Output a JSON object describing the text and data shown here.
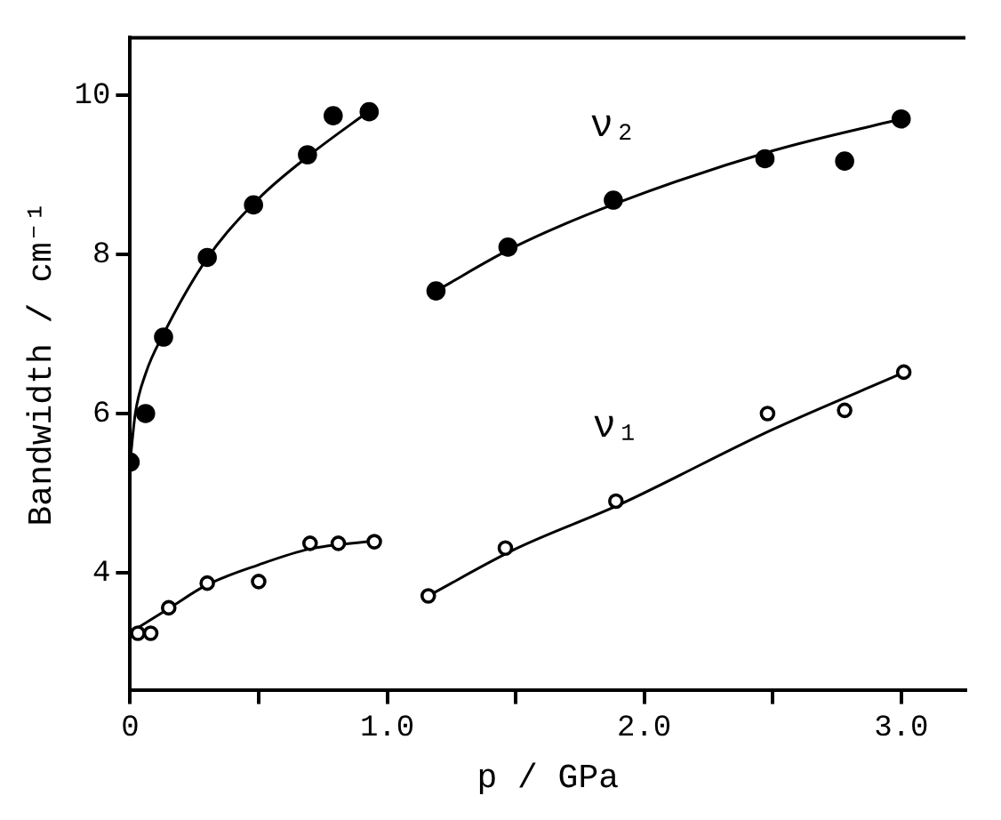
{
  "chart_data": {
    "type": "scatter",
    "xlabel": "p / GPa",
    "ylabel": "Bandwidth / cm⁻¹",
    "xlim": [
      0,
      3.25
    ],
    "ylim": [
      2.53,
      10.72
    ],
    "xticks": [
      0,
      {
        "value": 0.5,
        "label": null
      },
      {
        "value": 1,
        "label": "1.0"
      },
      {
        "value": 1.5,
        "label": null
      },
      {
        "value": 2,
        "label": "2.0"
      },
      {
        "value": 2.5,
        "label": null
      },
      {
        "value": 3,
        "label": "3.0"
      }
    ],
    "yticks": [
      4,
      6,
      8,
      10
    ],
    "grid": false,
    "legend": false,
    "series": [
      {
        "name": "ν₂",
        "marker": "circle",
        "color": "#000000",
        "x": [
          0,
          0.06,
          0.13,
          0.3,
          0.48,
          0.69,
          0.79,
          0.93,
          1.19,
          1.47,
          1.88,
          2.47,
          2.78,
          3.0
        ],
        "values": [
          5.39,
          6.0,
          6.96,
          7.96,
          8.62,
          9.25,
          9.74,
          9.79,
          7.54,
          8.09,
          8.68,
          9.2,
          9.17,
          9.7
        ]
      },
      {
        "name": "ν₁",
        "marker": "circle",
        "color": "#000000",
        "x": [
          0.03,
          0.08,
          0.15,
          0.3,
          0.5,
          0.7,
          0.81,
          0.95,
          1.16,
          1.46,
          1.89,
          2.48,
          2.78,
          3.01
        ],
        "values": [
          3.24,
          3.24,
          3.56,
          3.87,
          3.89,
          4.37,
          4.37,
          4.39,
          3.71,
          4.31,
          4.9,
          6.0,
          6.04,
          6.52
        ]
      },
      {
        "type": "line",
        "color": "#000000",
        "x": [
          0,
          0.02,
          0.06,
          0.13,
          0.3,
          0.5,
          0.7,
          0.93
        ],
        "values": [
          5.4,
          6.0,
          6.5,
          7.0,
          7.95,
          8.7,
          9.25,
          9.8
        ]
      },
      {
        "type": "line",
        "color": "#000000",
        "x": [
          1.19,
          1.5,
          1.9,
          2.5,
          3.0
        ],
        "values": [
          7.54,
          8.1,
          8.65,
          9.3,
          9.7
        ]
      },
      {
        "type": "line",
        "color": "#000000",
        "x": [
          0,
          0.15,
          0.3,
          0.5,
          0.7,
          0.95
        ],
        "values": [
          3.25,
          3.55,
          3.85,
          4.1,
          4.3,
          4.4
        ]
      },
      {
        "type": "line",
        "color": "#000000",
        "x": [
          1.16,
          1.5,
          1.9,
          2.5,
          3.0
        ],
        "values": [
          3.71,
          4.3,
          4.85,
          5.8,
          6.5
        ]
      }
    ]
  }
}
